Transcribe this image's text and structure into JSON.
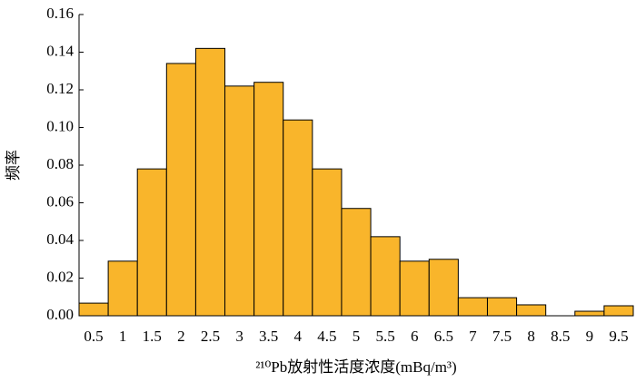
{
  "chart_data": {
    "type": "bar",
    "x_label": "²¹⁰Pb放射性活度浓度(mBq/m³)",
    "y_label": "频率",
    "categories": [
      "0.5",
      "1",
      "1.5",
      "2",
      "2.5",
      "3",
      "3.5",
      "4",
      "4.5",
      "5",
      "5.5",
      "6",
      "6.5",
      "7",
      "7.5",
      "8",
      "8.5",
      "9",
      "9.5"
    ],
    "values": [
      0.0067,
      0.029,
      0.078,
      0.134,
      0.142,
      0.122,
      0.124,
      0.104,
      0.078,
      0.057,
      0.042,
      0.029,
      0.03,
      0.0096,
      0.0096,
      0.0058,
      0,
      0.0024,
      0.0053
    ],
    "color": "#f9b52b",
    "ylim": [
      0,
      0.16
    ],
    "yticks": [
      {
        "value": 0,
        "label": "0.00"
      },
      {
        "value": 0.02,
        "label": "0.02"
      },
      {
        "value": 0.04,
        "label": "0.04"
      },
      {
        "value": 0.06,
        "label": "0.06"
      },
      {
        "value": 0.08,
        "label": "0.08"
      },
      {
        "value": 0.1,
        "label": "0.10"
      },
      {
        "value": 0.12,
        "label": "0.12"
      },
      {
        "value": 0.14,
        "label": "0.14"
      },
      {
        "value": 0.16,
        "label": "0.16"
      }
    ]
  }
}
